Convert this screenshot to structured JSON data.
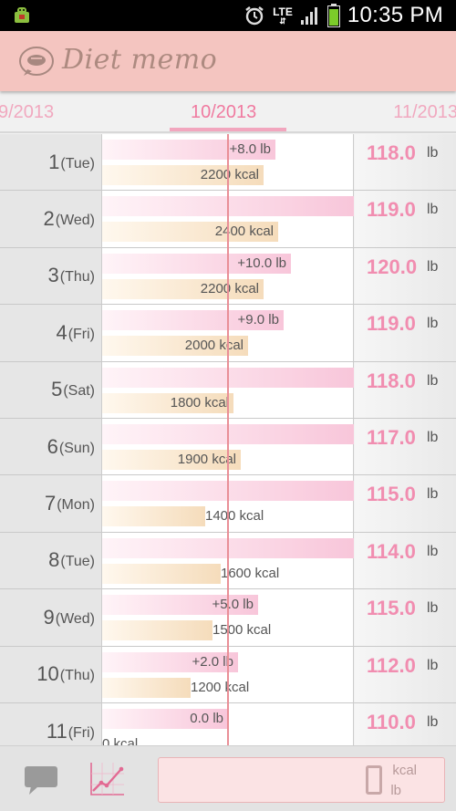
{
  "status_bar": {
    "network": "LTE",
    "time": "10:35 PM"
  },
  "app": {
    "title": "Diet memo"
  },
  "months": {
    "prev": "9/2013",
    "current": "10/2013",
    "next": "11/2013"
  },
  "days": [
    {
      "num": "1",
      "weekday": "(Tue)",
      "weight_change": "+8.0 lb",
      "calories": "2200 kcal",
      "weight": "118.0",
      "unit": "lb",
      "wchange_frac": 0.69,
      "kcal_frac": 0.64
    },
    {
      "num": "2",
      "weekday": "(Wed)",
      "weight_change": "",
      "calories": "2400 kcal",
      "weight": "119.0",
      "unit": "lb",
      "wchange_frac": 1.0,
      "kcal_frac": 0.7
    },
    {
      "num": "3",
      "weekday": "(Thu)",
      "weight_change": "+10.0 lb",
      "calories": "2200 kcal",
      "weight": "120.0",
      "unit": "lb",
      "wchange_frac": 0.75,
      "kcal_frac": 0.64
    },
    {
      "num": "4",
      "weekday": "(Fri)",
      "weight_change": "+9.0 lb",
      "calories": "2000 kcal",
      "weight": "119.0",
      "unit": "lb",
      "wchange_frac": 0.72,
      "kcal_frac": 0.58
    },
    {
      "num": "5",
      "weekday": "(Sat)",
      "weight_change": "",
      "calories": "1800 kcal",
      "weight": "118.0",
      "unit": "lb",
      "wchange_frac": 1.0,
      "kcal_frac": 0.52
    },
    {
      "num": "6",
      "weekday": "(Sun)",
      "weight_change": "",
      "calories": "1900 kcal",
      "weight": "117.0",
      "unit": "lb",
      "wchange_frac": 1.0,
      "kcal_frac": 0.55
    },
    {
      "num": "7",
      "weekday": "(Mon)",
      "weight_change": "",
      "calories": "1400 kcal",
      "weight": "115.0",
      "unit": "lb",
      "wchange_frac": 1.0,
      "kcal_frac": 0.41
    },
    {
      "num": "8",
      "weekday": "(Tue)",
      "weight_change": "",
      "calories": "1600 kcal",
      "weight": "114.0",
      "unit": "lb",
      "wchange_frac": 1.0,
      "kcal_frac": 0.47
    },
    {
      "num": "9",
      "weekday": "(Wed)",
      "weight_change": "+5.0 lb",
      "calories": "1500 kcal",
      "weight": "115.0",
      "unit": "lb",
      "wchange_frac": 0.62,
      "kcal_frac": 0.44
    },
    {
      "num": "10",
      "weekday": "(Thu)",
      "weight_change": "+2.0 lb",
      "calories": "1200 kcal",
      "weight": "112.0",
      "unit": "lb",
      "wchange_frac": 0.54,
      "kcal_frac": 0.35
    },
    {
      "num": "11",
      "weekday": "(Fri)",
      "weight_change": "0.0 lb",
      "calories": "0 kcal",
      "weight": "110.0",
      "unit": "lb",
      "wchange_frac": 0.5,
      "kcal_frac": 0.0
    }
  ],
  "summary": {
    "digit": "0",
    "unit_kcal": "kcal",
    "unit_lb": "lb"
  },
  "icons": {
    "chat": "chat-bubble-icon",
    "graph": "line-graph-icon"
  },
  "colors": {
    "header": "#f4c5c0",
    "accent": "#f07aa0",
    "weight_text": "#f18db0",
    "baseline": "#e98f97"
  }
}
